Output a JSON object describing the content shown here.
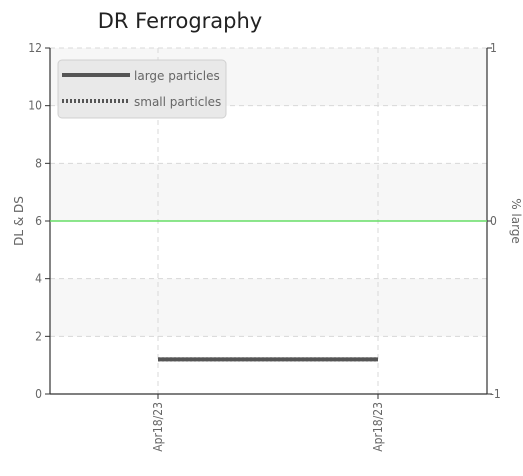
{
  "chart_data": {
    "type": "line",
    "title": "DR Ferrography",
    "ylabel": "DL & DS",
    "y2label": "% large",
    "categories": [
      "Apr18/23",
      "Apr18/23"
    ],
    "ylim": [
      0,
      12
    ],
    "yticks": [
      0,
      2,
      4,
      6,
      8,
      10,
      12
    ],
    "y2lim": [
      -1,
      1
    ],
    "y2ticks": [
      -1,
      0,
      1
    ],
    "grid": true,
    "legend_position": "top-left",
    "series": [
      {
        "name": "large particles",
        "axis": "left",
        "style": "solid",
        "color": "#555555",
        "values": [
          1.2,
          1.2
        ]
      },
      {
        "name": "small particles",
        "axis": "left",
        "style": "dotted",
        "color": "#555555",
        "values": [
          1.2,
          1.2
        ]
      },
      {
        "name": "",
        "axis": "right",
        "style": "solid",
        "color": "#66dd66",
        "values": [
          0,
          0
        ]
      }
    ]
  }
}
